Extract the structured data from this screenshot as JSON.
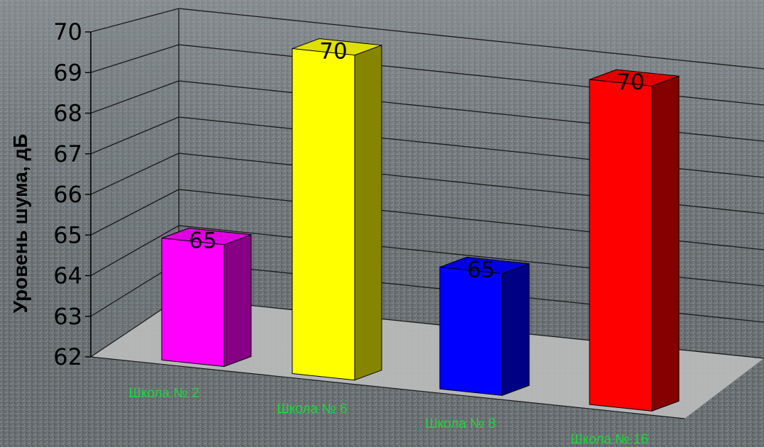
{
  "chart_data": {
    "type": "bar",
    "three_d": true,
    "categories": [
      "Школа № 2",
      "Школа № 6",
      "Школа № 8",
      "Школа № 16"
    ],
    "values": [
      65,
      70,
      65,
      70
    ],
    "data_labels": [
      "65",
      "70",
      "65",
      "70"
    ],
    "colors": [
      "#ff00ff",
      "#ffff00",
      "#0000ff",
      "#ff0000"
    ],
    "ylabel": "Уровень шума, дБ",
    "ylim": [
      62,
      70
    ],
    "yticks": [
      "62",
      "63",
      "64",
      "65",
      "66",
      "67",
      "68",
      "69",
      "70"
    ],
    "grid": true,
    "legend": "none",
    "floor_color": "#bdbdbd",
    "category_label_color": "#19d93a"
  }
}
